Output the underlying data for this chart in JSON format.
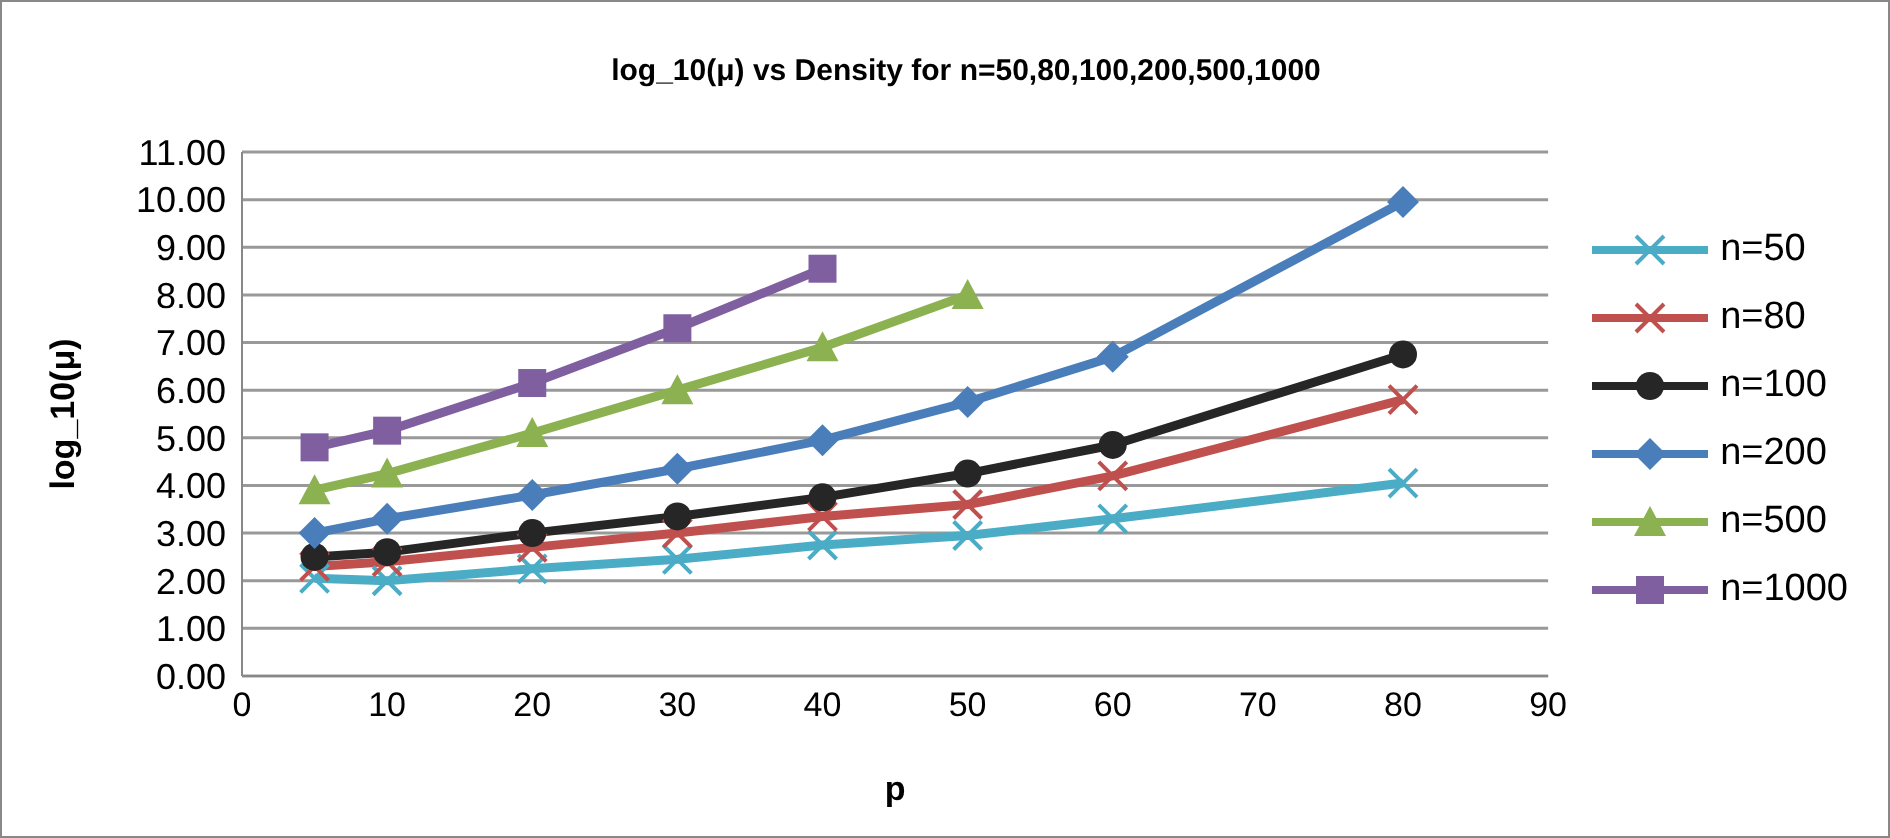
{
  "chart_data": {
    "type": "line",
    "title": "log_10(μ) vs Density for n=50,80,100,200,500,1000",
    "xlabel": "p",
    "ylabel": "log_10(μ)",
    "xlim": [
      0,
      90
    ],
    "xticks": [
      0,
      10,
      20,
      30,
      40,
      50,
      60,
      70,
      80,
      90
    ],
    "ylim": [
      0,
      11
    ],
    "yticks": [
      {
        "value": 0,
        "label": "0.00"
      },
      {
        "value": 1,
        "label": "1.00"
      },
      {
        "value": 2,
        "label": "2.00"
      },
      {
        "value": 3,
        "label": "3.00"
      },
      {
        "value": 4,
        "label": "4.00"
      },
      {
        "value": 5,
        "label": "5.00"
      },
      {
        "value": 6,
        "label": "6.00"
      },
      {
        "value": 7,
        "label": "7.00"
      },
      {
        "value": 8,
        "label": "8.00"
      },
      {
        "value": 9,
        "label": "9.00"
      },
      {
        "value": 10,
        "label": "10.00"
      },
      {
        "value": 11,
        "label": "11.00"
      }
    ],
    "grid": "y",
    "legend": "right",
    "line_style": "solid",
    "series": [
      {
        "name": "n=50",
        "color": "#4bacc6",
        "marker": "cross",
        "x": [
          5,
          10,
          20,
          30,
          40,
          50,
          60,
          80
        ],
        "values": [
          2.05,
          2.0,
          2.25,
          2.45,
          2.75,
          2.95,
          3.3,
          4.05
        ]
      },
      {
        "name": "n=80",
        "color": "#c0504d",
        "marker": "cross",
        "x": [
          5,
          10,
          20,
          30,
          40,
          50,
          60,
          80
        ],
        "values": [
          2.3,
          2.4,
          2.7,
          3.0,
          3.35,
          3.6,
          4.2,
          5.8
        ]
      },
      {
        "name": "n=100",
        "color": "#262626",
        "marker": "circle",
        "x": [
          5,
          10,
          20,
          30,
          40,
          50,
          60,
          80
        ],
        "values": [
          2.5,
          2.6,
          3.0,
          3.35,
          3.75,
          4.25,
          4.85,
          6.75
        ]
      },
      {
        "name": "n=200",
        "color": "#4a7ebb",
        "marker": "diamond",
        "x": [
          5,
          10,
          20,
          30,
          40,
          50,
          60,
          80
        ],
        "values": [
          3.0,
          3.3,
          3.8,
          4.35,
          4.95,
          5.75,
          6.7,
          9.95
        ]
      },
      {
        "name": "n=500",
        "color": "#8cb150",
        "marker": "triangle",
        "x": [
          5,
          10,
          20,
          30,
          40,
          50
        ],
        "values": [
          3.9,
          4.25,
          5.1,
          6.0,
          6.9,
          8.0
        ]
      },
      {
        "name": "n=1000",
        "color": "#7f5fa0",
        "marker": "square",
        "x": [
          5,
          10,
          20,
          30,
          40
        ],
        "values": [
          4.8,
          5.15,
          6.15,
          7.3,
          8.55
        ]
      }
    ]
  }
}
